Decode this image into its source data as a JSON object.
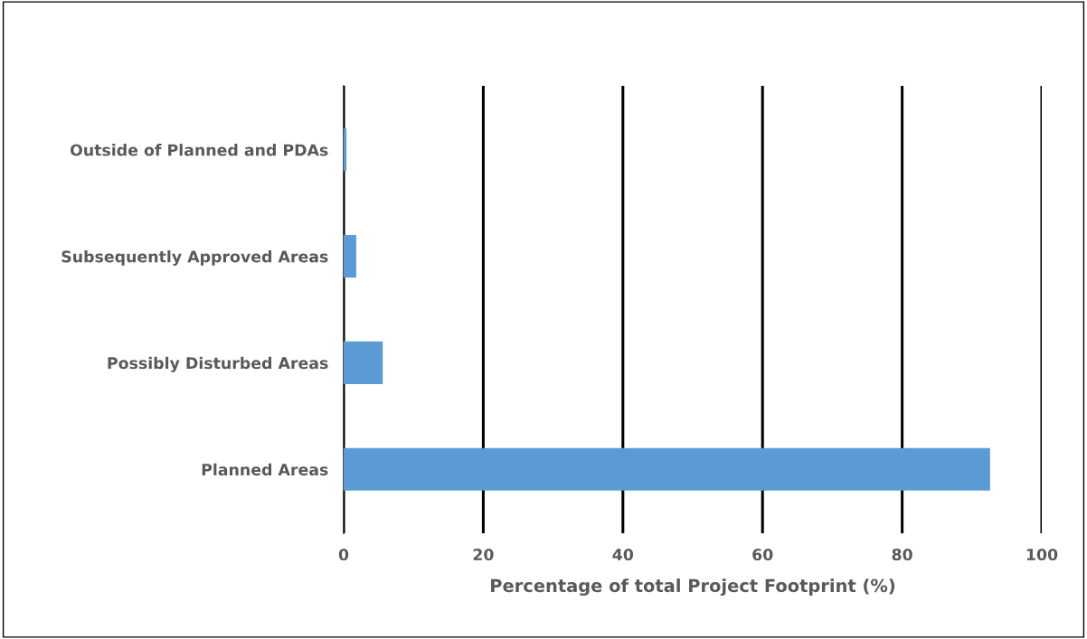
{
  "chart_data": {
    "type": "bar",
    "orientation": "horizontal",
    "xlabel": "Percentage of total Project Footprint (%)",
    "categories": [
      "Outside of Planned and PDAs",
      "Subsequently Approved Areas",
      "Possibly Disturbed Areas",
      "Planned Areas"
    ],
    "values": [
      0.4,
      1.8,
      5.6,
      92.6
    ],
    "color": "#5b9bd5",
    "xlim": [
      0,
      100
    ],
    "xticks": [
      0,
      20,
      40,
      60,
      80,
      100
    ],
    "grid": "x"
  }
}
